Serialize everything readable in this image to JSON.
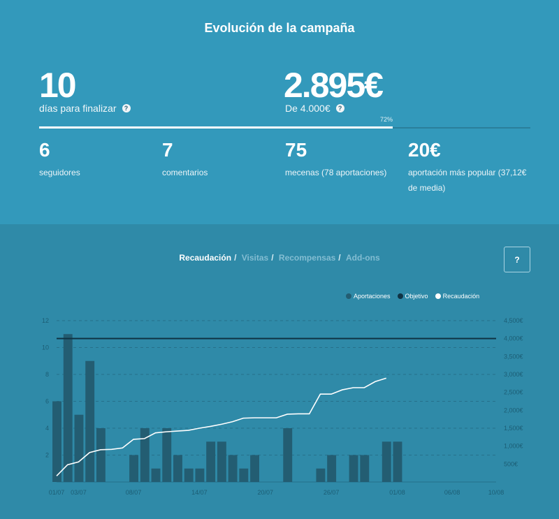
{
  "title": "Evolución de la campaña",
  "days": {
    "value": "10",
    "label": "días para finalizar"
  },
  "raised": {
    "value": "2.895€",
    "label": "De 4.000€",
    "percent_text": "72%",
    "percent": 0.72
  },
  "help_glyph": "?",
  "stats": [
    {
      "value": "6",
      "label": "seguidores"
    },
    {
      "value": "7",
      "label": "comentarios"
    },
    {
      "value": "75",
      "label": "mecenas (78 aportaciones)"
    },
    {
      "value": "20€",
      "label": "aportación más popular (37,12€ de media)"
    }
  ],
  "tabs": [
    {
      "label": "Recaudación",
      "active": true
    },
    {
      "label": "Visitas",
      "active": false
    },
    {
      "label": "Recompensas",
      "active": false
    },
    {
      "label": "Add-ons",
      "active": false
    }
  ],
  "tab_sep": "/",
  "help_button": "?",
  "legend": [
    {
      "label": "Aportaciones",
      "color": "#235d72"
    },
    {
      "label": "Objetivo",
      "color": "#0f3344"
    },
    {
      "label": "Recaudación",
      "color": "#ffffff"
    }
  ],
  "chart_data": {
    "type": "bar",
    "days_count": 41,
    "bar_values": [
      6,
      11,
      5,
      9,
      4,
      0,
      0,
      2,
      4,
      1,
      4,
      2,
      1,
      1,
      3,
      3,
      2,
      1,
      2,
      0,
      0,
      4,
      0,
      0,
      1,
      2,
      0,
      2,
      2,
      0,
      3,
      3,
      0,
      0,
      0,
      0,
      0,
      0,
      0,
      0,
      0
    ],
    "line_values": [
      170,
      480,
      560,
      820,
      900,
      910,
      950,
      1190,
      1210,
      1370,
      1400,
      1420,
      1440,
      1500,
      1550,
      1610,
      1680,
      1780,
      1790,
      1790,
      1790,
      1890,
      1900,
      1900,
      2450,
      2450,
      2570,
      2630,
      2630,
      2800,
      2895
    ],
    "goal": 4000,
    "y_left": {
      "min": 0,
      "max": 12,
      "ticks": [
        "2",
        "4",
        "6",
        "8",
        "10",
        "12"
      ]
    },
    "y_right": {
      "min": 0,
      "max": 4500,
      "ticks": [
        "500€",
        "1,000€",
        "1,500€",
        "2,000€",
        "2,500€",
        "3,000€",
        "3,500€",
        "4,000€",
        "4,500€"
      ]
    },
    "x_ticks": [
      "01/07",
      "03/07",
      "08/07",
      "14/07",
      "20/07",
      "26/07",
      "01/08",
      "06/08",
      "10/08"
    ],
    "series": [
      {
        "name": "Aportaciones"
      },
      {
        "name": "Objetivo"
      },
      {
        "name": "Recaudación"
      }
    ]
  }
}
